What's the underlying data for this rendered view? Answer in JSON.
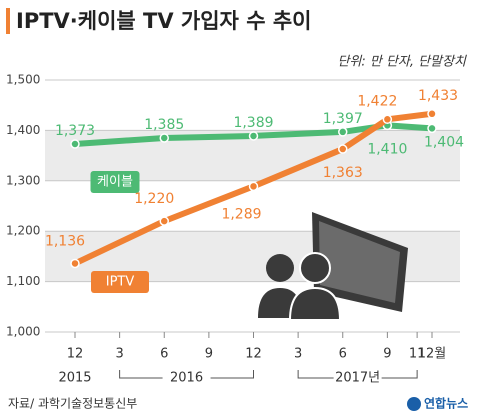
{
  "chart_data": {
    "type": "line",
    "title": "IPTV·케이블 TV 가입자 수 추이",
    "subtitle": "단위: 만 단자, 단말장치",
    "source": "자료/ 과학기술정보통신부",
    "logo": "연합뉴스",
    "x": [
      0,
      6,
      12,
      18,
      21,
      24
    ],
    "xlim": [
      0,
      24
    ],
    "xticks": [
      {
        "value": 0,
        "label": "12"
      },
      3,
      6,
      9,
      12,
      {
        "value": 15,
        "label": "3"
      },
      {
        "value": 18,
        "label": "6"
      },
      {
        "value": 21,
        "label": "9"
      },
      {
        "value": 23,
        "label": "11"
      },
      {
        "value": 24,
        "label": "12월"
      }
    ],
    "x_group_labels": [
      "2015",
      "2016",
      "2017년"
    ],
    "ylim": [
      1000,
      1500
    ],
    "yticks": [
      {
        "value": 1000,
        "label": "1,000"
      },
      {
        "value": 1100,
        "label": "1,100"
      },
      {
        "value": 1200,
        "label": "1,200"
      },
      {
        "value": 1300,
        "label": "1,300"
      },
      {
        "value": 1400,
        "label": "1,400"
      },
      {
        "value": 1500,
        "label": "1,500"
      }
    ],
    "grid": true,
    "series": [
      {
        "name": "케이블",
        "color": "#4dba74",
        "values": [
          1373,
          1385,
          1389,
          1397,
          1410,
          1404
        ],
        "value_labels": [
          "1,373",
          "1,385",
          "1,389",
          "1,397",
          "1,410",
          "1,404"
        ]
      },
      {
        "name": "IPTV",
        "color": "#f08133",
        "values": [
          1136,
          1220,
          1289,
          1363,
          1422,
          1433
        ],
        "value_labels": [
          "1,136",
          "1,220",
          "1,289",
          "1,363",
          "1,422",
          "1,433"
        ]
      }
    ]
  }
}
